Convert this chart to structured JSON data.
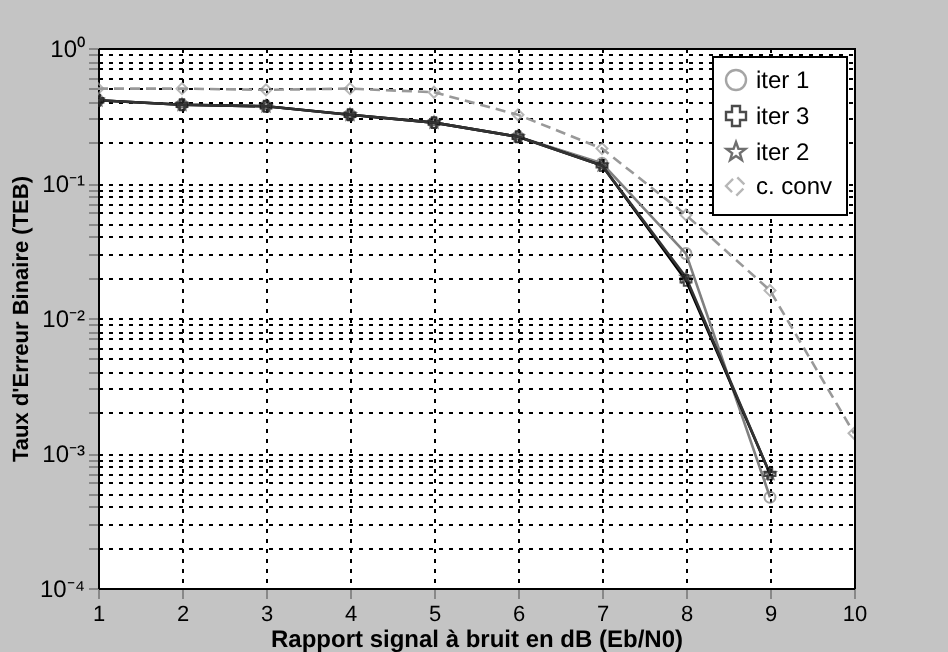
{
  "chart_data": {
    "type": "line",
    "xlabel": "Rapport signal à bruit en dB (Eb/N0)",
    "ylabel": "Taux d'Erreur Binaire (TEB)",
    "x": [
      1,
      2,
      3,
      4,
      5,
      6,
      7,
      8,
      9,
      10
    ],
    "series": [
      {
        "name": "iter 1",
        "color": "#808080",
        "marker": "circle",
        "line_style": "solid",
        "values": [
          0.41,
          0.38,
          0.37,
          0.32,
          0.28,
          0.22,
          0.14,
          0.03,
          0.00047,
          null
        ]
      },
      {
        "name": "iter 3",
        "color": "#000000",
        "marker": "cross",
        "line_style": "solid",
        "values": [
          0.41,
          0.38,
          0.37,
          0.32,
          0.28,
          0.22,
          0.135,
          0.019,
          0.0007,
          null
        ]
      },
      {
        "name": "iter 2",
        "color": "#333333",
        "marker": "star",
        "line_style": "solid",
        "values": [
          0.41,
          0.38,
          0.37,
          0.32,
          0.28,
          0.22,
          0.135,
          0.02,
          0.0007,
          null
        ]
      },
      {
        "name": "c. conv",
        "color": "#999999",
        "marker": "diamond",
        "line_style": "dashed",
        "values": [
          0.5,
          0.5,
          0.49,
          0.5,
          0.47,
          0.32,
          0.18,
          0.058,
          0.016,
          0.0014
        ]
      }
    ],
    "log": "y",
    "xlim": [
      1,
      10
    ],
    "xticks": [
      1,
      2,
      3,
      4,
      5,
      6,
      7,
      8,
      9,
      10
    ],
    "ylim": [
      0.0001,
      1
    ],
    "yticks": [
      {
        "value": 0.0001,
        "label": "10⁻⁴"
      },
      {
        "value": 0.0002,
        "label": null
      },
      {
        "value": 0.0003,
        "label": null
      },
      {
        "value": 0.0004,
        "label": null
      },
      {
        "value": 0.0005,
        "label": null
      },
      {
        "value": 0.0006,
        "label": null
      },
      {
        "value": 0.0007,
        "label": null
      },
      {
        "value": 0.0008,
        "label": null
      },
      {
        "value": 0.0009,
        "label": null
      },
      {
        "value": 0.001,
        "label": "10⁻³"
      },
      {
        "value": 0.002,
        "label": null
      },
      {
        "value": 0.003,
        "label": null
      },
      {
        "value": 0.004,
        "label": null
      },
      {
        "value": 0.005,
        "label": null
      },
      {
        "value": 0.006,
        "label": null
      },
      {
        "value": 0.007,
        "label": null
      },
      {
        "value": 0.008,
        "label": null
      },
      {
        "value": 0.009,
        "label": null
      },
      {
        "value": 0.01,
        "label": "10⁻²"
      },
      {
        "value": 0.02,
        "label": null
      },
      {
        "value": 0.03,
        "label": null
      },
      {
        "value": 0.04,
        "label": null
      },
      {
        "value": 0.05,
        "label": null
      },
      {
        "value": 0.06,
        "label": null
      },
      {
        "value": 0.07,
        "label": null
      },
      {
        "value": 0.08,
        "label": null
      },
      {
        "value": 0.09,
        "label": null
      },
      {
        "value": 0.1,
        "label": "10⁻¹"
      },
      {
        "value": 0.2,
        "label": null
      },
      {
        "value": 0.3,
        "label": null
      },
      {
        "value": 0.4,
        "label": null
      },
      {
        "value": 0.5,
        "label": null
      },
      {
        "value": 0.6,
        "label": null
      },
      {
        "value": 0.7,
        "label": null
      },
      {
        "value": 0.8,
        "label": null
      },
      {
        "value": 0.9,
        "label": null
      },
      {
        "value": 1,
        "label": "10⁰"
      }
    ],
    "grid": true,
    "legend": "top right"
  }
}
